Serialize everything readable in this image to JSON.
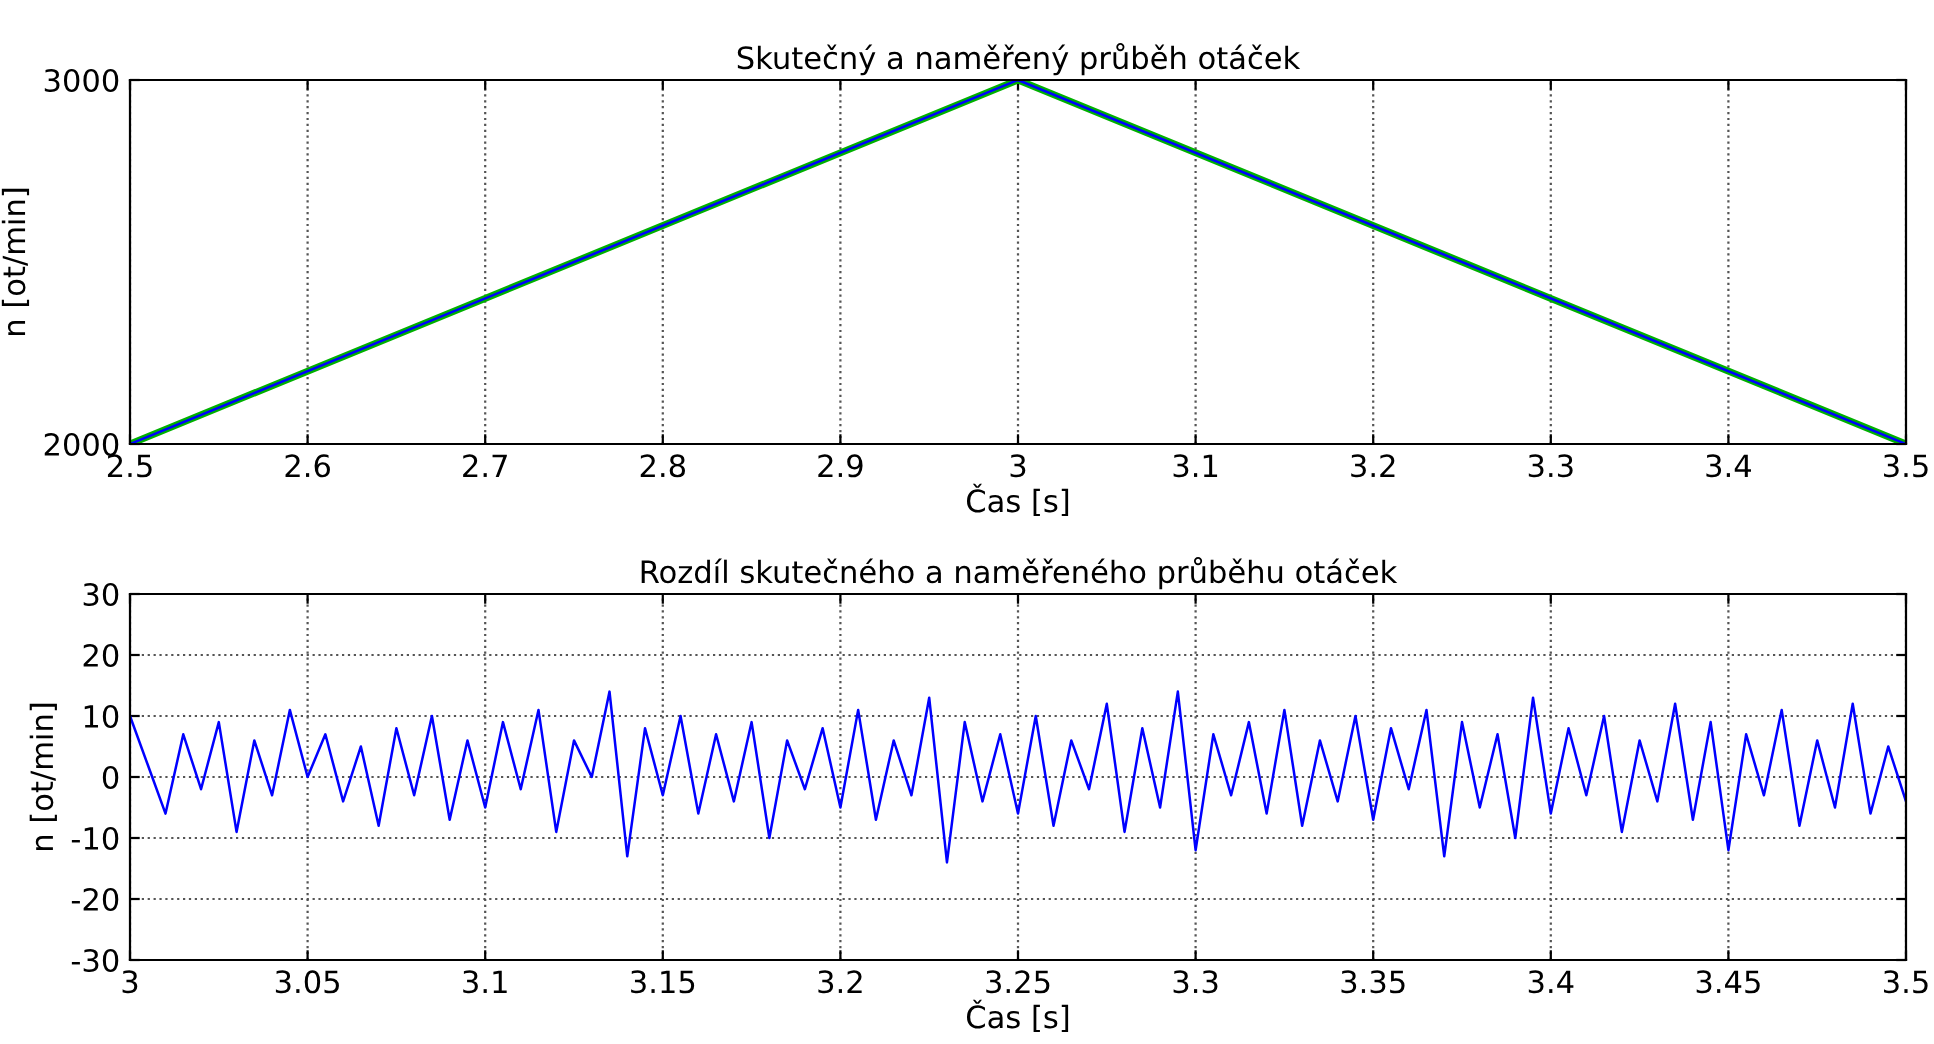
{
  "chart_data": [
    {
      "type": "line",
      "title": "Skutečný a naměřený průběh otáček",
      "xlabel": "Čas [s]",
      "ylabel": "n [ot/min]",
      "x": [
        2.5,
        3,
        3.5
      ],
      "series": [
        {
          "color": "#00b000",
          "values": [
            2000,
            3000,
            2000
          ]
        },
        {
          "color": "#0000ff",
          "values": [
            2000,
            3000,
            2000
          ]
        }
      ],
      "xlim": [
        2.5,
        3.5
      ],
      "xticks": [
        2.5,
        2.6,
        2.7,
        2.8,
        2.9,
        3,
        3.1,
        3.2,
        3.3,
        3.4,
        3.5
      ],
      "ylim": [
        2000,
        3000
      ],
      "yticks": [
        2000,
        3000
      ],
      "grid": "x"
    },
    {
      "type": "line",
      "title": "Rozdíl skutečného a naměřeného průběhu otáček",
      "xlabel": "Čas [s]",
      "ylabel": "n [ot/min]",
      "x": [
        3.0,
        3.005,
        3.01,
        3.015,
        3.02,
        3.025,
        3.03,
        3.035,
        3.04,
        3.045,
        3.05,
        3.055,
        3.06,
        3.065,
        3.07,
        3.075,
        3.08,
        3.085,
        3.09,
        3.095,
        3.1,
        3.105,
        3.11,
        3.115,
        3.12,
        3.125,
        3.13,
        3.135,
        3.14,
        3.145,
        3.15,
        3.155,
        3.16,
        3.165,
        3.17,
        3.175,
        3.18,
        3.185,
        3.19,
        3.195,
        3.2,
        3.205,
        3.21,
        3.215,
        3.22,
        3.225,
        3.23,
        3.235,
        3.24,
        3.245,
        3.25,
        3.255,
        3.26,
        3.265,
        3.27,
        3.275,
        3.28,
        3.285,
        3.29,
        3.295,
        3.3,
        3.305,
        3.31,
        3.315,
        3.32,
        3.325,
        3.33,
        3.335,
        3.34,
        3.345,
        3.35,
        3.355,
        3.36,
        3.365,
        3.37,
        3.375,
        3.38,
        3.385,
        3.39,
        3.395,
        3.4,
        3.405,
        3.41,
        3.415,
        3.42,
        3.425,
        3.43,
        3.435,
        3.44,
        3.445,
        3.45,
        3.455,
        3.46,
        3.465,
        3.47,
        3.475,
        3.48,
        3.485,
        3.49,
        3.495,
        3.5
      ],
      "series": [
        {
          "color": "#0000ff",
          "values": [
            10,
            2,
            -6,
            7,
            -2,
            9,
            -9,
            6,
            -3,
            11,
            0,
            7,
            -4,
            5,
            -8,
            8,
            -3,
            10,
            -7,
            6,
            -5,
            9,
            -2,
            11,
            -9,
            6,
            0,
            14,
            -13,
            8,
            -3,
            10,
            -6,
            7,
            -4,
            9,
            -10,
            6,
            -2,
            8,
            -5,
            11,
            -7,
            6,
            -3,
            13,
            -14,
            9,
            -4,
            7,
            -6,
            10,
            -8,
            6,
            -2,
            12,
            -9,
            8,
            -5,
            14,
            -12,
            7,
            -3,
            9,
            -6,
            11,
            -8,
            6,
            -4,
            10,
            -7,
            8,
            -2,
            11,
            -13,
            9,
            -5,
            7,
            -10,
            13,
            -6,
            8,
            -3,
            10,
            -9,
            6,
            -4,
            12,
            -7,
            9,
            -12,
            7,
            -3,
            11,
            -8,
            6,
            -5,
            12,
            -6,
            5,
            -4
          ]
        }
      ],
      "xlim": [
        3,
        3.5
      ],
      "xticks": [
        3,
        3.05,
        3.1,
        3.15,
        3.2,
        3.25,
        3.3,
        3.35,
        3.4,
        3.45,
        3.5
      ],
      "ylim": [
        -30,
        30
      ],
      "yticks": [
        -30,
        -20,
        -10,
        0,
        10,
        20,
        30
      ],
      "grid": true
    }
  ]
}
